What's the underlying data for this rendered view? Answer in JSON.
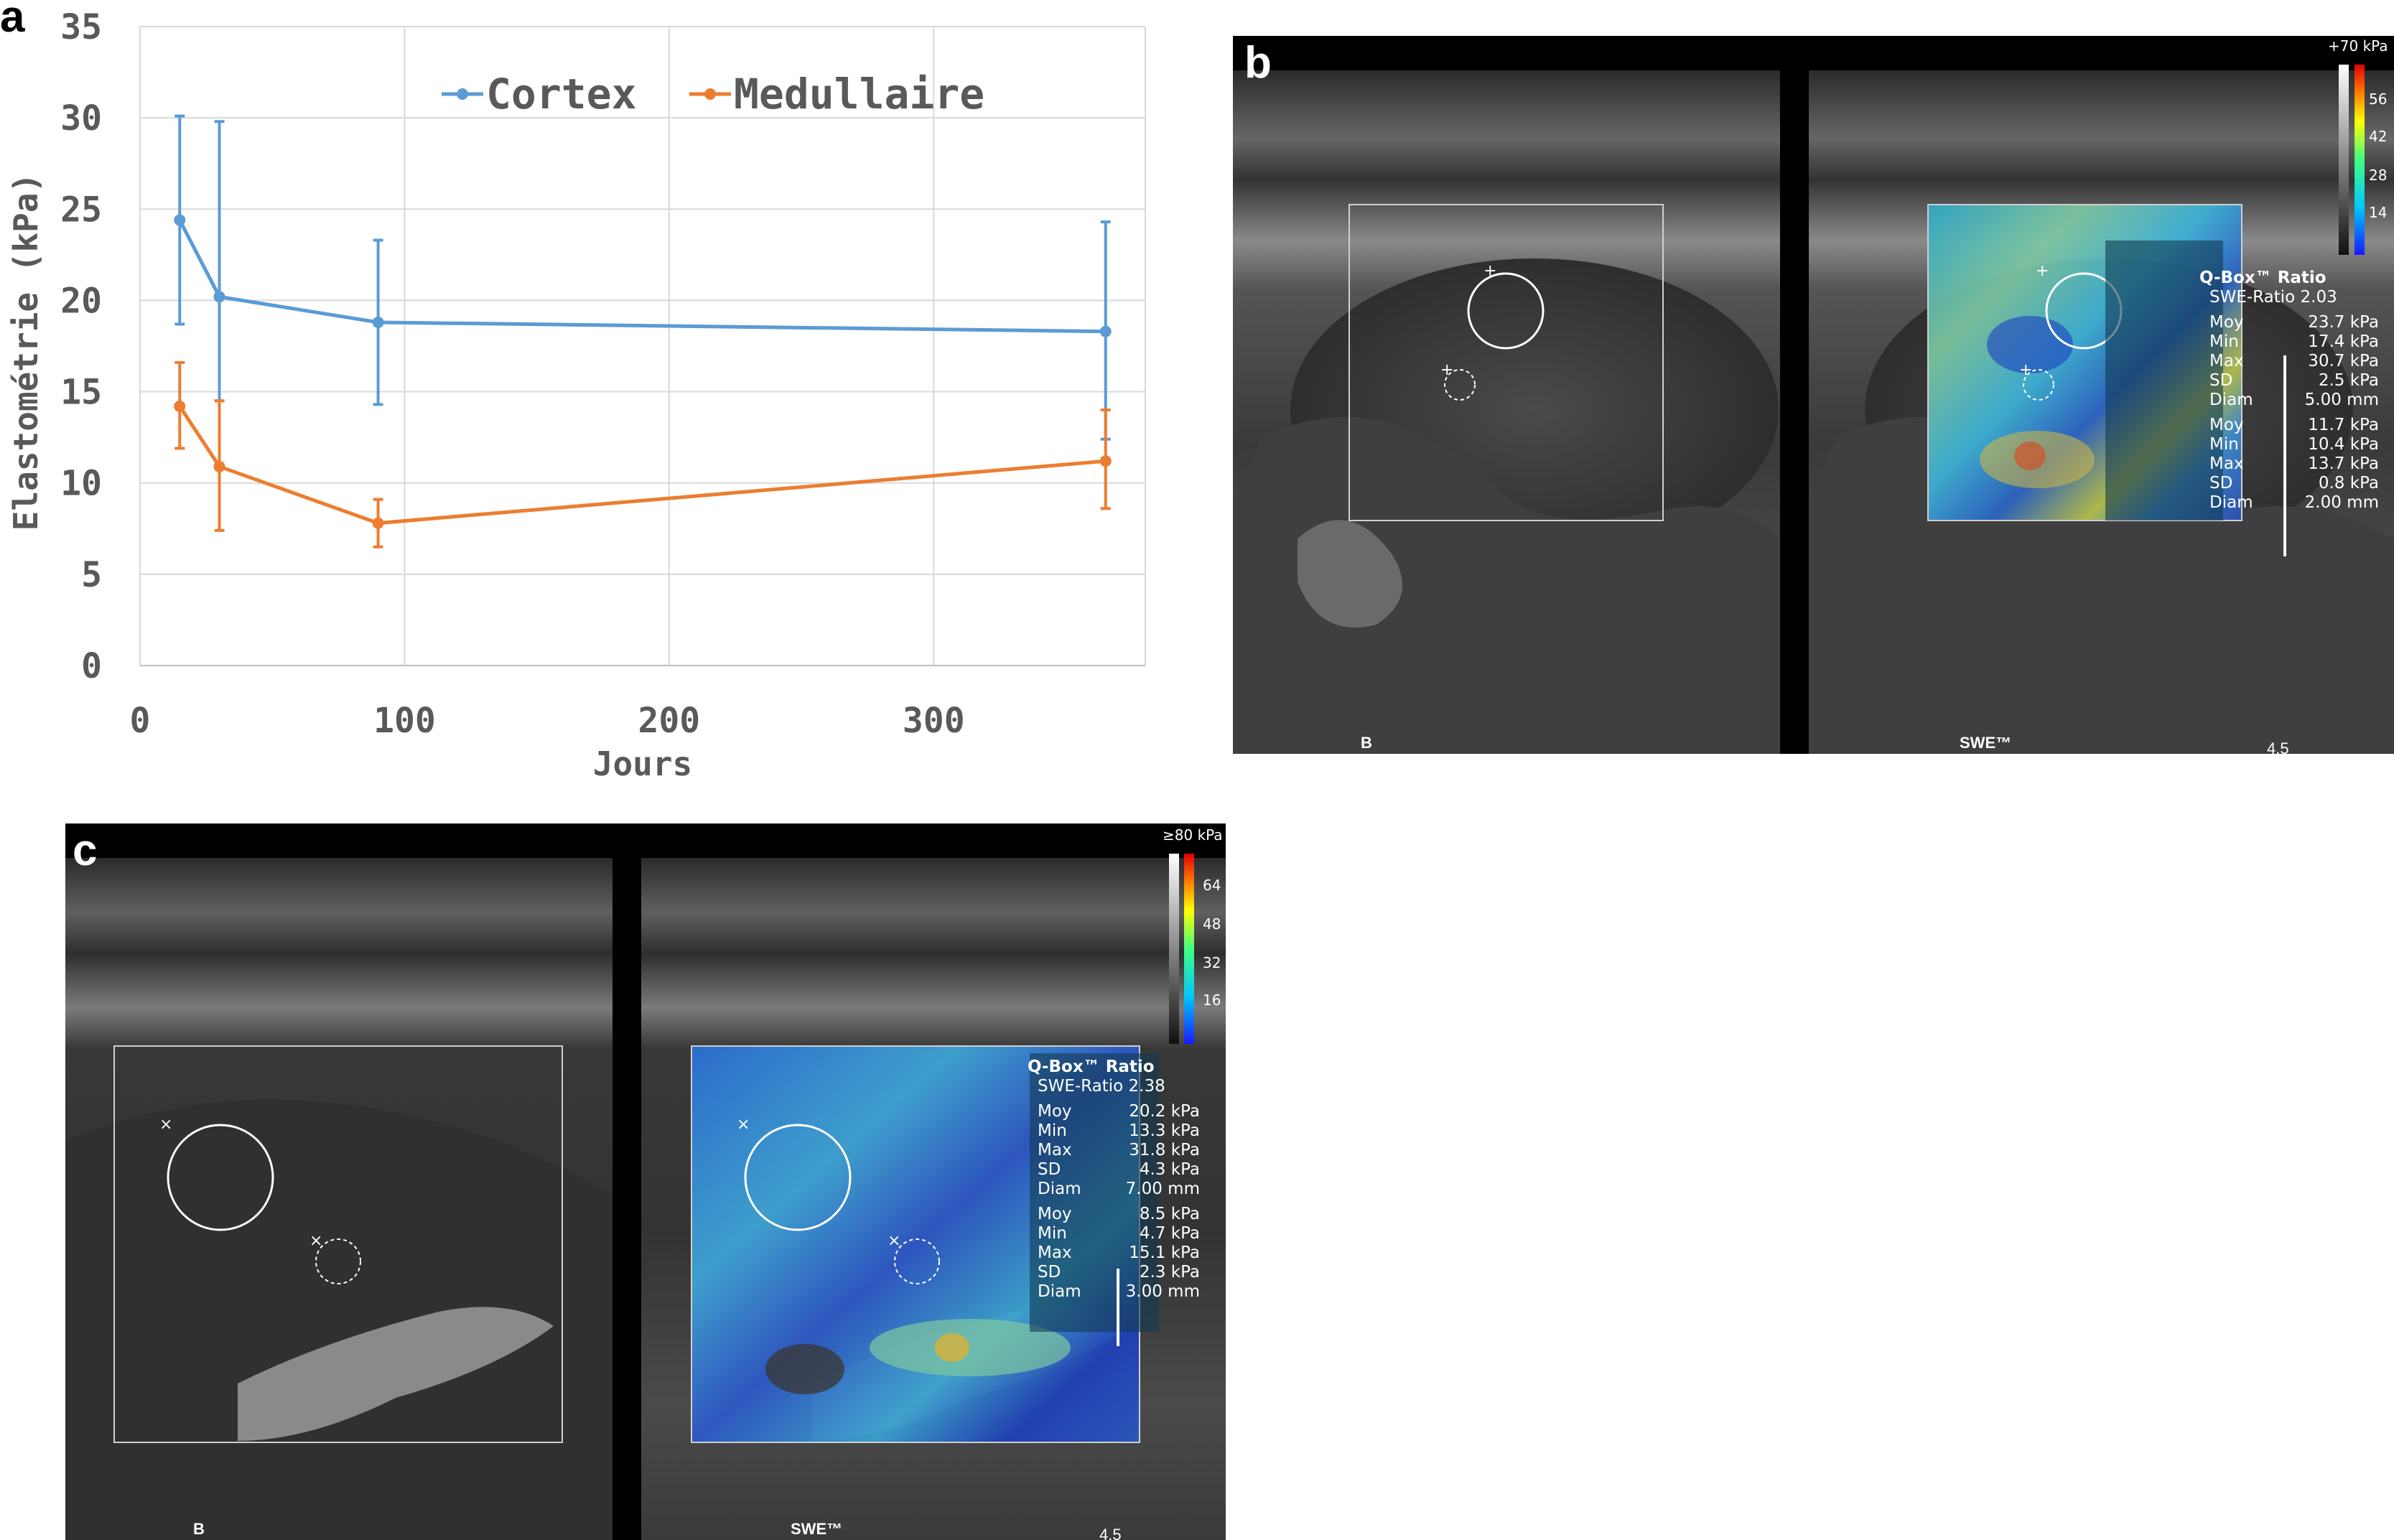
{
  "panel_a": {
    "letter": "a",
    "chart_data": {
      "type": "line",
      "xlabel": "Jours",
      "ylabel": "Elastométrie (kPa)",
      "xlim": [
        0,
        380
      ],
      "ylim": [
        0,
        35
      ],
      "xticks": [
        0,
        100,
        200,
        300
      ],
      "yticks": [
        0,
        5,
        10,
        15,
        20,
        25,
        30,
        35
      ],
      "grid": true,
      "legend_position": "top",
      "series": [
        {
          "name": "Cortex",
          "color": "#5b9bd5",
          "x": [
            15,
            30,
            90,
            365
          ],
          "y": [
            24.4,
            20.2,
            18.8,
            18.3
          ],
          "err_low": [
            18.7,
            14.5,
            14.3,
            12.4
          ],
          "err_high": [
            30.1,
            29.8,
            23.3,
            24.3
          ]
        },
        {
          "name": "Medullaire",
          "color": "#ed7d31",
          "x": [
            15,
            30,
            90,
            365
          ],
          "y": [
            14.2,
            10.9,
            7.8,
            11.2
          ],
          "err_low": [
            11.9,
            7.4,
            6.5,
            8.6
          ],
          "err_high": [
            16.6,
            14.5,
            9.1,
            14.0
          ]
        }
      ]
    }
  },
  "panel_b": {
    "letter": "b",
    "left_label": "B",
    "right_label": "SWE™",
    "scale_max": "+70 kPa",
    "scale_ticks": [
      "56",
      "42",
      "28",
      "14"
    ],
    "qbox": {
      "title": "Q-Box™ Ratio",
      "ratio": "SWE-Ratio 2.03",
      "group1": [
        [
          "Moy",
          "23.7 kPa"
        ],
        [
          "Min",
          "17.4 kPa"
        ],
        [
          "Max",
          "30.7 kPa"
        ],
        [
          "SD",
          "2.5 kPa"
        ],
        [
          "Diam",
          "5.00 mm"
        ]
      ],
      "group2": [
        [
          "Moy",
          "11.7 kPa"
        ],
        [
          "Min",
          "10.4 kPa"
        ],
        [
          "Max",
          "13.7 kPa"
        ],
        [
          "SD",
          "0.8 kPa"
        ],
        [
          "Diam",
          "2.00 mm"
        ]
      ]
    },
    "depth": "4.5"
  },
  "panel_c": {
    "letter": "c",
    "left_label": "B",
    "right_label": "SWE™",
    "scale_max": "≥80 kPa",
    "scale_ticks": [
      "64",
      "48",
      "32",
      "16"
    ],
    "qbox": {
      "title": "Q-Box™ Ratio",
      "ratio": "SWE-Ratio 2.38",
      "group1": [
        [
          "Moy",
          "20.2 kPa"
        ],
        [
          "Min",
          "13.3 kPa"
        ],
        [
          "Max",
          "31.8 kPa"
        ],
        [
          "SD",
          "4.3 kPa"
        ],
        [
          "Diam",
          "7.00 mm"
        ]
      ],
      "group2": [
        [
          "Moy",
          "8.5 kPa"
        ],
        [
          "Min",
          "4.7 kPa"
        ],
        [
          "Max",
          "15.1 kPa"
        ],
        [
          "SD",
          "2.3 kPa"
        ],
        [
          "Diam",
          "3.00 mm"
        ]
      ]
    },
    "depth": "4.5"
  }
}
